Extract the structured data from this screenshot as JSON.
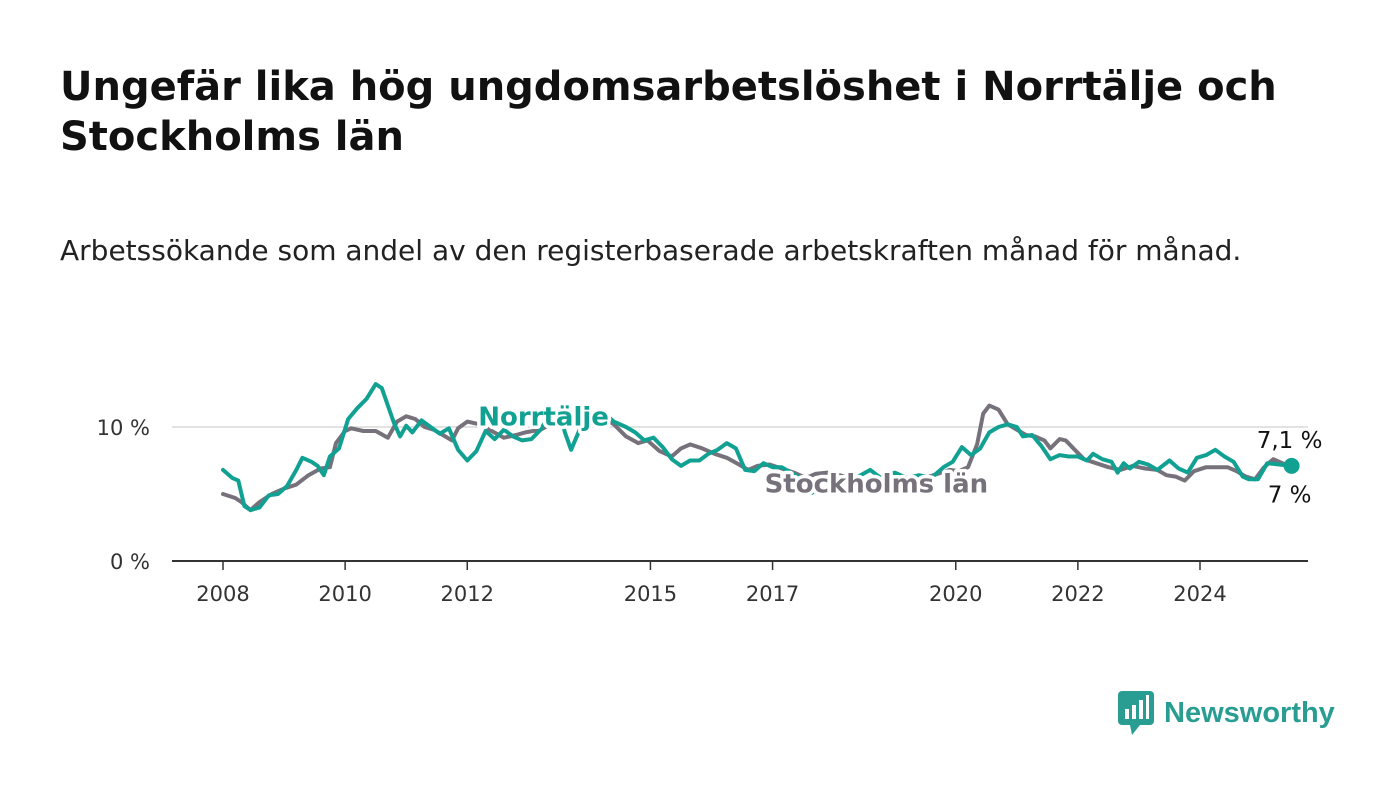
{
  "title": "Ungefär lika hög ungdomsarbetslöshet i Norrtälje och Stockholms län",
  "subtitle": "Arbetssökande som andel av den registerbaserade arbetskraften månad för månad.",
  "brand": {
    "name": "Newsworthy",
    "icon": "newsworthy-bar-chart-icon",
    "color": "#2a9d93"
  },
  "colors": {
    "norrtalje": "#11a193",
    "stockholm": "#76717a",
    "grid": "#d9d9d9",
    "axis": "#333333"
  },
  "chart_data": {
    "type": "line",
    "xlabel": "",
    "ylabel": "",
    "xlim": [
      2008,
      2025.6
    ],
    "ylim": [
      0,
      13.5
    ],
    "y_ticks": [
      {
        "value": 0,
        "label": "0 %"
      },
      {
        "value": 10,
        "label": "10 %"
      }
    ],
    "x_ticks": [
      {
        "value": 2008,
        "label": "2008"
      },
      {
        "value": 2010,
        "label": "2010"
      },
      {
        "value": 2012,
        "label": "2012"
      },
      {
        "value": 2015,
        "label": "2015"
      },
      {
        "value": 2017,
        "label": "2017"
      },
      {
        "value": 2020,
        "label": "2020"
      },
      {
        "value": 2022,
        "label": "2022"
      },
      {
        "value": 2024,
        "label": "2024"
      }
    ],
    "grid": "horizontal",
    "series": [
      {
        "name": "Stockholms län",
        "color": "#76717a",
        "end_label": "7 %",
        "points": [
          [
            2008.0,
            5.0
          ],
          [
            2008.2,
            4.7
          ],
          [
            2008.3,
            4.4
          ],
          [
            2008.45,
            3.8
          ],
          [
            2008.6,
            4.4
          ],
          [
            2008.8,
            5.0
          ],
          [
            2009.0,
            5.4
          ],
          [
            2009.2,
            5.7
          ],
          [
            2009.4,
            6.4
          ],
          [
            2009.6,
            6.9
          ],
          [
            2009.75,
            7.0
          ],
          [
            2009.85,
            8.8
          ],
          [
            2010.0,
            9.7
          ],
          [
            2010.1,
            9.9
          ],
          [
            2010.3,
            9.7
          ],
          [
            2010.5,
            9.7
          ],
          [
            2010.7,
            9.2
          ],
          [
            2010.85,
            10.4
          ],
          [
            2011.0,
            10.8
          ],
          [
            2011.15,
            10.6
          ],
          [
            2011.3,
            10.0
          ],
          [
            2011.45,
            9.8
          ],
          [
            2011.6,
            9.4
          ],
          [
            2011.75,
            9.0
          ],
          [
            2011.85,
            9.9
          ],
          [
            2012.0,
            10.4
          ],
          [
            2012.2,
            10.2
          ],
          [
            2012.4,
            9.7
          ],
          [
            2012.6,
            9.2
          ],
          [
            2012.8,
            9.4
          ],
          [
            2012.95,
            9.6
          ],
          [
            2013.2,
            9.8
          ],
          [
            2013.4,
            10.3
          ],
          [
            2013.6,
            10.9
          ],
          [
            2013.8,
            11.0
          ],
          [
            2013.95,
            11.2
          ],
          [
            2014.2,
            10.8
          ],
          [
            2014.4,
            10.2
          ],
          [
            2014.6,
            9.3
          ],
          [
            2014.8,
            8.8
          ],
          [
            2014.95,
            9.0
          ],
          [
            2015.15,
            8.2
          ],
          [
            2015.35,
            7.8
          ],
          [
            2015.5,
            8.4
          ],
          [
            2015.65,
            8.7
          ],
          [
            2015.85,
            8.4
          ],
          [
            2016.05,
            8.0
          ],
          [
            2016.25,
            7.7
          ],
          [
            2016.45,
            7.2
          ],
          [
            2016.6,
            6.8
          ],
          [
            2016.75,
            7.1
          ],
          [
            2016.95,
            7.2
          ],
          [
            2017.15,
            6.9
          ],
          [
            2017.35,
            6.6
          ],
          [
            2017.55,
            6.2
          ],
          [
            2017.7,
            6.5
          ],
          [
            2017.9,
            6.6
          ],
          [
            2018.1,
            6.4
          ],
          [
            2018.3,
            6.1
          ],
          [
            2018.5,
            6.0
          ],
          [
            2018.7,
            6.2
          ],
          [
            2018.9,
            6.3
          ],
          [
            2019.1,
            6.2
          ],
          [
            2019.3,
            6.1
          ],
          [
            2019.5,
            6.2
          ],
          [
            2019.7,
            6.5
          ],
          [
            2019.9,
            6.8
          ],
          [
            2020.05,
            6.7
          ],
          [
            2020.2,
            7.0
          ],
          [
            2020.35,
            8.7
          ],
          [
            2020.45,
            11.0
          ],
          [
            2020.55,
            11.6
          ],
          [
            2020.7,
            11.3
          ],
          [
            2020.85,
            10.2
          ],
          [
            2021.0,
            9.8
          ],
          [
            2021.15,
            9.4
          ],
          [
            2021.3,
            9.3
          ],
          [
            2021.45,
            9.0
          ],
          [
            2021.55,
            8.4
          ],
          [
            2021.7,
            9.1
          ],
          [
            2021.8,
            9.0
          ],
          [
            2021.95,
            8.3
          ],
          [
            2022.1,
            7.6
          ],
          [
            2022.3,
            7.3
          ],
          [
            2022.5,
            7.0
          ],
          [
            2022.7,
            6.8
          ],
          [
            2022.9,
            7.1
          ],
          [
            2023.1,
            6.9
          ],
          [
            2023.3,
            6.8
          ],
          [
            2023.45,
            6.4
          ],
          [
            2023.6,
            6.3
          ],
          [
            2023.75,
            6.0
          ],
          [
            2023.9,
            6.7
          ],
          [
            2024.1,
            7.0
          ],
          [
            2024.3,
            7.0
          ],
          [
            2024.45,
            7.0
          ],
          [
            2024.6,
            6.7
          ],
          [
            2024.75,
            6.3
          ],
          [
            2024.9,
            6.1
          ],
          [
            2025.05,
            7.0
          ],
          [
            2025.2,
            7.6
          ],
          [
            2025.35,
            7.3
          ],
          [
            2025.5,
            7.0
          ]
        ]
      },
      {
        "name": "Norrtälje",
        "color": "#11a193",
        "end_label": "7,1 %",
        "points": [
          [
            2008.0,
            6.8
          ],
          [
            2008.15,
            6.2
          ],
          [
            2008.25,
            6.0
          ],
          [
            2008.35,
            4.1
          ],
          [
            2008.45,
            3.8
          ],
          [
            2008.6,
            4.0
          ],
          [
            2008.75,
            4.9
          ],
          [
            2008.9,
            5.0
          ],
          [
            2009.05,
            5.6
          ],
          [
            2009.2,
            6.8
          ],
          [
            2009.3,
            7.7
          ],
          [
            2009.45,
            7.4
          ],
          [
            2009.55,
            7.1
          ],
          [
            2009.65,
            6.4
          ],
          [
            2009.75,
            7.8
          ],
          [
            2009.9,
            8.4
          ],
          [
            2010.05,
            10.6
          ],
          [
            2010.2,
            11.4
          ],
          [
            2010.35,
            12.1
          ],
          [
            2010.5,
            13.2
          ],
          [
            2010.6,
            12.9
          ],
          [
            2010.7,
            11.6
          ],
          [
            2010.8,
            10.3
          ],
          [
            2010.9,
            9.3
          ],
          [
            2011.0,
            10.1
          ],
          [
            2011.1,
            9.6
          ],
          [
            2011.25,
            10.5
          ],
          [
            2011.4,
            10.0
          ],
          [
            2011.55,
            9.5
          ],
          [
            2011.7,
            9.9
          ],
          [
            2011.85,
            8.3
          ],
          [
            2012.0,
            7.5
          ],
          [
            2012.15,
            8.2
          ],
          [
            2012.3,
            9.7
          ],
          [
            2012.45,
            9.1
          ],
          [
            2012.6,
            9.8
          ],
          [
            2012.75,
            9.3
          ],
          [
            2012.9,
            9.0
          ],
          [
            2013.05,
            9.1
          ],
          [
            2013.2,
            9.8
          ],
          [
            2013.35,
            10.9
          ],
          [
            2013.5,
            11.3
          ],
          [
            2013.6,
            9.6
          ],
          [
            2013.7,
            8.3
          ],
          [
            2013.85,
            9.9
          ],
          [
            2014.0,
            10.9
          ],
          [
            2014.2,
            11.2
          ],
          [
            2014.4,
            10.4
          ],
          [
            2014.6,
            10.0
          ],
          [
            2014.75,
            9.6
          ],
          [
            2014.9,
            9.0
          ],
          [
            2015.05,
            9.2
          ],
          [
            2015.2,
            8.5
          ],
          [
            2015.35,
            7.6
          ],
          [
            2015.5,
            7.1
          ],
          [
            2015.65,
            7.5
          ],
          [
            2015.8,
            7.5
          ],
          [
            2015.95,
            8.0
          ],
          [
            2016.1,
            8.3
          ],
          [
            2016.25,
            8.8
          ],
          [
            2016.4,
            8.4
          ],
          [
            2016.55,
            6.8
          ],
          [
            2016.7,
            6.7
          ],
          [
            2016.85,
            7.3
          ],
          [
            2017.0,
            7.0
          ],
          [
            2017.15,
            7.0
          ],
          [
            2017.3,
            6.6
          ],
          [
            2017.45,
            6.2
          ],
          [
            2017.55,
            5.7
          ],
          [
            2017.65,
            5.1
          ],
          [
            2017.8,
            6.0
          ],
          [
            2018.0,
            6.3
          ],
          [
            2018.2,
            6.1
          ],
          [
            2018.4,
            6.3
          ],
          [
            2018.6,
            6.8
          ],
          [
            2018.8,
            6.1
          ],
          [
            2019.0,
            6.6
          ],
          [
            2019.2,
            6.2
          ],
          [
            2019.4,
            6.4
          ],
          [
            2019.6,
            6.2
          ],
          [
            2019.8,
            7.0
          ],
          [
            2019.95,
            7.4
          ],
          [
            2020.1,
            8.5
          ],
          [
            2020.25,
            7.9
          ],
          [
            2020.4,
            8.4
          ],
          [
            2020.55,
            9.6
          ],
          [
            2020.7,
            10.0
          ],
          [
            2020.85,
            10.2
          ],
          [
            2021.0,
            10.0
          ],
          [
            2021.1,
            9.3
          ],
          [
            2021.25,
            9.4
          ],
          [
            2021.4,
            8.6
          ],
          [
            2021.55,
            7.6
          ],
          [
            2021.7,
            7.9
          ],
          [
            2021.85,
            7.8
          ],
          [
            2022.0,
            7.8
          ],
          [
            2022.15,
            7.5
          ],
          [
            2022.25,
            8.0
          ],
          [
            2022.4,
            7.6
          ],
          [
            2022.55,
            7.4
          ],
          [
            2022.65,
            6.6
          ],
          [
            2022.75,
            7.3
          ],
          [
            2022.85,
            6.9
          ],
          [
            2023.0,
            7.4
          ],
          [
            2023.15,
            7.2
          ],
          [
            2023.3,
            6.8
          ],
          [
            2023.5,
            7.5
          ],
          [
            2023.65,
            6.9
          ],
          [
            2023.8,
            6.6
          ],
          [
            2023.95,
            7.7
          ],
          [
            2024.1,
            7.9
          ],
          [
            2024.25,
            8.3
          ],
          [
            2024.4,
            7.8
          ],
          [
            2024.55,
            7.4
          ],
          [
            2024.7,
            6.3
          ],
          [
            2024.8,
            6.1
          ],
          [
            2024.95,
            6.1
          ],
          [
            2025.1,
            7.3
          ],
          [
            2025.3,
            7.2
          ],
          [
            2025.5,
            7.1
          ]
        ]
      }
    ],
    "annotations": [
      {
        "text": "Norrtälje",
        "series": "Norrtälje",
        "x": 2013.25,
        "y": 10.1
      },
      {
        "text": "Stockholms län",
        "series": "Stockholms län",
        "x": 2018.7,
        "y": 5.1
      }
    ]
  }
}
